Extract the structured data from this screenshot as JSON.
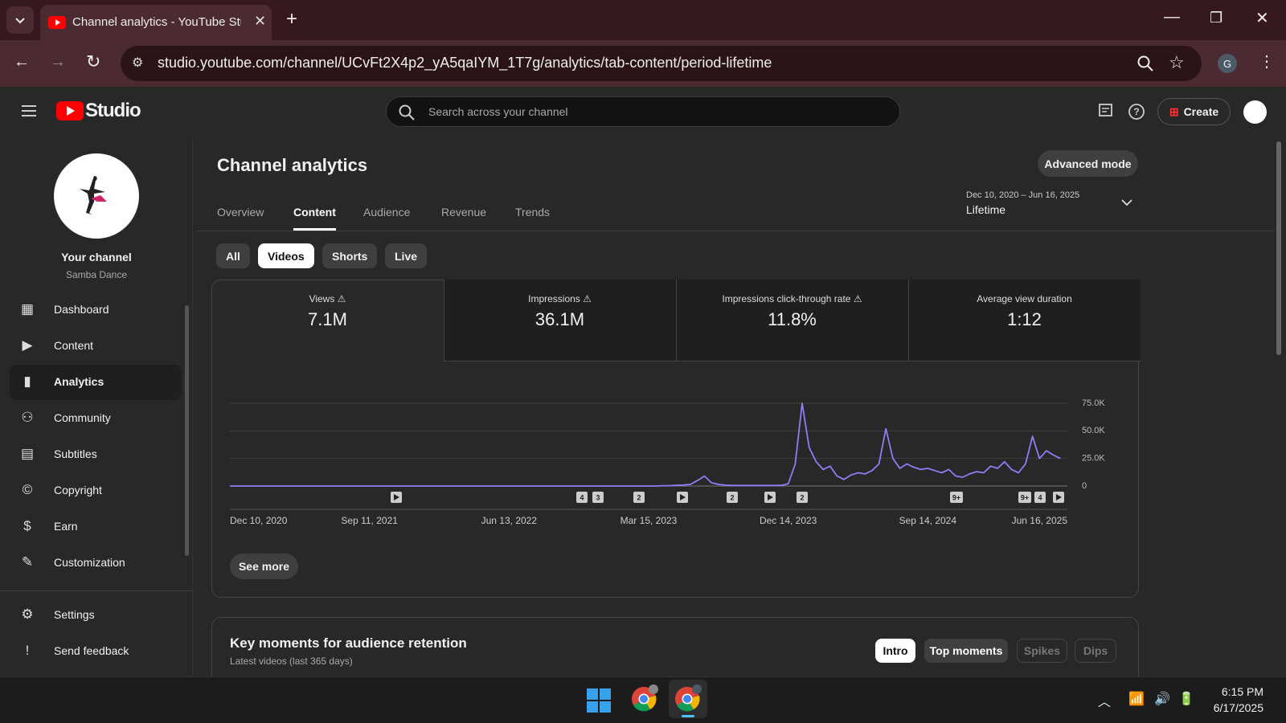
{
  "browser": {
    "tab_title": "Channel analytics - YouTube Studio",
    "url": "studio.youtube.com/channel/UCvFt2X4p2_yA5qaIYM_1T7g/analytics/tab-content/period-lifetime"
  },
  "header": {
    "brand": "Studio",
    "search_placeholder": "Search across your channel",
    "create": "Create"
  },
  "sidebar": {
    "channel_title": "Your channel",
    "channel_name": "Samba Dance",
    "nav": [
      "Dashboard",
      "Content",
      "Analytics",
      "Community",
      "Subtitles",
      "Copyright",
      "Earn",
      "Customization"
    ],
    "bottom": [
      "Settings",
      "Send feedback"
    ]
  },
  "main": {
    "title": "Channel analytics",
    "advanced": "Advanced mode",
    "tabs": [
      "Overview",
      "Content",
      "Audience",
      "Revenue",
      "Trends"
    ],
    "date_range": "Dec 10, 2020 – Jun 16, 2025",
    "period": "Lifetime",
    "filters": [
      "All",
      "Videos",
      "Shorts",
      "Live"
    ],
    "metrics": [
      {
        "label": "Views",
        "value": "7.1M"
      },
      {
        "label": "Impressions",
        "value": "36.1M"
      },
      {
        "label": "Impressions click-through rate",
        "value": "11.8%"
      },
      {
        "label": "Average view duration",
        "value": "1:12"
      }
    ],
    "chart": {
      "type": "line",
      "color": "#8d7ef5",
      "values": [
        0,
        0,
        0,
        0,
        0,
        0,
        0,
        0,
        0,
        0,
        0,
        0,
        0,
        0,
        0,
        0,
        0,
        0,
        0,
        0,
        0,
        0,
        0,
        0,
        0,
        0,
        0,
        0,
        0,
        0,
        0,
        0,
        0,
        0,
        0,
        0,
        0,
        0,
        0,
        0,
        0,
        0,
        0,
        0,
        0,
        0,
        0,
        0,
        0,
        0,
        0,
        0,
        0,
        0,
        0,
        0,
        0,
        0,
        0,
        0,
        0,
        0,
        300,
        400,
        600,
        900,
        1500,
        5000,
        9000,
        3000,
        1500,
        800,
        500,
        500,
        500,
        500,
        500,
        500,
        500,
        600,
        2000,
        20000,
        75000,
        35000,
        22000,
        15000,
        18000,
        9000,
        6000,
        10000,
        12000,
        11000,
        14000,
        20000,
        52000,
        25000,
        16000,
        20000,
        17000,
        15000,
        16000,
        14000,
        12000,
        15000,
        9000,
        8000,
        11000,
        13000,
        12000,
        18000,
        16000,
        22000,
        15000,
        12000,
        20000,
        45000,
        25000,
        32000,
        28000,
        25000
      ],
      "xlim": [
        0,
        120
      ],
      "xticks": [
        {
          "value": 0,
          "label": "Dec 10, 2020"
        },
        {
          "value": 20,
          "label": "Sep 11, 2021"
        },
        {
          "value": 40,
          "label": "Jun 13, 2022"
        },
        {
          "value": 60,
          "label": "Mar 15, 2023"
        },
        {
          "value": 80,
          "label": "Dec 14, 2023"
        },
        {
          "value": 100,
          "label": "Sep 14, 2024"
        },
        {
          "value": 120,
          "label": "Jun 16, 2025"
        }
      ],
      "ylim": [
        0,
        75000
      ],
      "yticks": [
        0,
        {
          "value": 25000,
          "label": "25.0K"
        },
        {
          "value": 50000,
          "label": "50.0K"
        },
        {
          "value": 75000,
          "label": "75.0K"
        }
      ],
      "grid": true,
      "markers": [
        "4",
        "3",
        "2",
        "2",
        "2",
        "9+",
        "9+",
        "4"
      ]
    },
    "see_more": "See more",
    "key_moments": {
      "title": "Key moments for audience retention",
      "subtitle": "Latest videos (last 365 days)",
      "buttons": [
        "Intro",
        "Top moments",
        "Spikes",
        "Dips"
      ]
    }
  },
  "taskbar": {
    "time": "6:15 PM",
    "date": "6/17/2025"
  }
}
